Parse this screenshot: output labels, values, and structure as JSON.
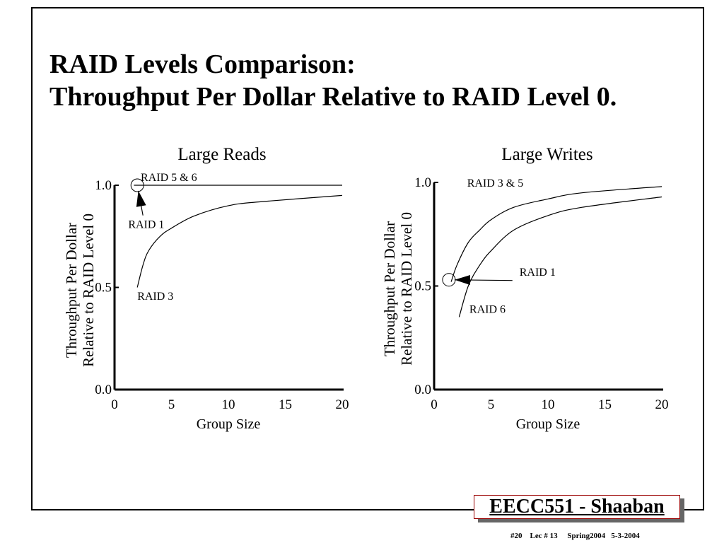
{
  "slide": {
    "title_line1": "RAID Levels Comparison:",
    "title_line2": "Throughput Per Dollar Relative to RAID Level 0.",
    "badge": "EECC551 - Shaaban",
    "footer_meta": "#20    Lec # 13     Spring2004   5-3-2004"
  },
  "chart_data": [
    {
      "type": "line",
      "title": "Large Reads",
      "xlabel": "Group Size",
      "ylabel": [
        "Throughput Per Dollar",
        "Relative to RAID Level 0"
      ],
      "xlim": [
        0,
        20
      ],
      "ylim": [
        0,
        1.0
      ],
      "xticks": [
        "0",
        "5",
        "10",
        "15",
        "20"
      ],
      "yticks": [
        "0.0",
        "0.5",
        "1.0"
      ],
      "grid": false,
      "series": [
        {
          "name": "RAID 5 & 6",
          "x": [
            1.7,
            20
          ],
          "y": [
            1.0,
            1.0
          ]
        },
        {
          "name": "RAID 3",
          "x": [
            2,
            2.5,
            3,
            4,
            5,
            7,
            10,
            13,
            20
          ],
          "y": [
            0.5,
            0.61,
            0.68,
            0.75,
            0.79,
            0.85,
            0.9,
            0.92,
            0.95
          ]
        }
      ],
      "points": [
        {
          "name": "RAID 1",
          "x": 2,
          "y": 1.0
        }
      ],
      "labels": [
        {
          "text": "RAID 5 & 6",
          "x": 2.3,
          "y": 1.02
        },
        {
          "text": "RAID 1",
          "x": 1.2,
          "y": 0.79
        },
        {
          "text": "RAID 3",
          "x": 2.0,
          "y": 0.44
        }
      ]
    },
    {
      "type": "line",
      "title": "Large Writes",
      "xlabel": "Group Size",
      "ylabel": [
        "Throughput Per Dollar",
        "Relative to RAID Level 0"
      ],
      "xlim": [
        0,
        20
      ],
      "ylim": [
        0,
        1.0
      ],
      "xticks": [
        "0",
        "5",
        "10",
        "15",
        "20"
      ],
      "yticks": [
        "0.0",
        "0.5",
        "1.0"
      ],
      "grid": false,
      "series": [
        {
          "name": "RAID 3 & 5",
          "x": [
            1.5,
            2,
            3,
            4,
            5,
            7,
            10,
            13,
            20
          ],
          "y": [
            0.52,
            0.6,
            0.71,
            0.77,
            0.82,
            0.88,
            0.92,
            0.95,
            0.98
          ]
        },
        {
          "name": "RAID 6",
          "x": [
            2.2,
            3,
            4,
            5,
            7,
            10,
            13,
            20
          ],
          "y": [
            0.35,
            0.5,
            0.6,
            0.67,
            0.77,
            0.84,
            0.88,
            0.93
          ]
        }
      ],
      "points": [
        {
          "name": "RAID 1",
          "x": 1.3,
          "y": 0.53
        }
      ],
      "labels": [
        {
          "text": "RAID 3 & 5",
          "x": 2.9,
          "y": 0.98
        },
        {
          "text": "RAID 1",
          "x": 7.5,
          "y": 0.55
        },
        {
          "text": "RAID 6",
          "x": 3.1,
          "y": 0.37
        }
      ]
    }
  ]
}
